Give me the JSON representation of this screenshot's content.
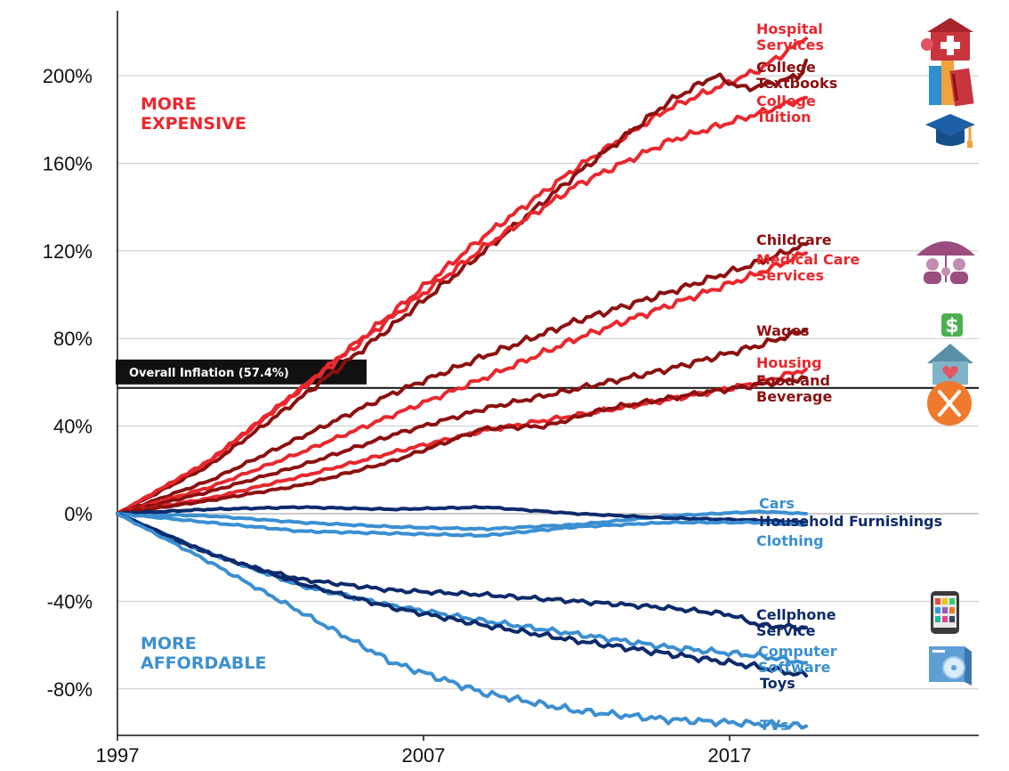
{
  "chart_data": {
    "type": "line",
    "x_ticks": [
      "1997",
      "2007",
      "2017"
    ],
    "y_ticks": [
      "200%",
      "160%",
      "120%",
      "80%",
      "40%",
      "0%",
      "-40%",
      "-80%"
    ],
    "y_tick_values": [
      200,
      160,
      120,
      80,
      40,
      0,
      -40,
      -80
    ],
    "xlim": [
      1997,
      2021.5
    ],
    "ylim": [
      -100,
      215
    ],
    "grid": true,
    "annotations": {
      "more_expensive": [
        "MORE",
        "EXPENSIVE"
      ],
      "more_affordable": [
        "MORE",
        "AFFORDABLE"
      ],
      "overall_inflation": {
        "label": "Overall Inflation (57.4%)",
        "value": 57.4
      }
    },
    "series": [
      {
        "name": "Hospital Services",
        "label_lines": [
          "Hospital",
          "Services"
        ],
        "color": "#e8282e",
        "icon": "hospital-icon",
        "points": [
          [
            1997,
            0
          ],
          [
            2000,
            24
          ],
          [
            2003,
            57
          ],
          [
            2006,
            92
          ],
          [
            2009,
            127
          ],
          [
            2012,
            158
          ],
          [
            2015,
            185
          ],
          [
            2018,
            203
          ],
          [
            2019.5,
            217
          ]
        ]
      },
      {
        "name": "College Textbooks",
        "label_lines": [
          "College",
          "Textbooks"
        ],
        "color": "#8c1010",
        "icon": "textbooks-icon",
        "points": [
          [
            1997,
            0
          ],
          [
            2000,
            22
          ],
          [
            2003,
            53
          ],
          [
            2006,
            86
          ],
          [
            2009,
            120
          ],
          [
            2012,
            155
          ],
          [
            2015,
            188
          ],
          [
            2016.5,
            200
          ],
          [
            2017.5,
            194
          ],
          [
            2018.5,
            197
          ],
          [
            2019.3,
            200
          ],
          [
            2019.5,
            207
          ]
        ]
      },
      {
        "name": "College Tuition",
        "label_lines": [
          "College",
          "Tuition"
        ],
        "color": "#e8282e",
        "icon": "graduation-cap-icon",
        "points": [
          [
            1997,
            0
          ],
          [
            2000,
            24
          ],
          [
            2003,
            57
          ],
          [
            2006,
            90
          ],
          [
            2009,
            122
          ],
          [
            2012,
            150
          ],
          [
            2015,
            170
          ],
          [
            2018,
            183
          ],
          [
            2019.5,
            190
          ]
        ]
      },
      {
        "name": "Childcare",
        "label_lines": [
          "Childcare"
        ],
        "color": "#8c1010",
        "icon": "family-umbrella-icon",
        "points": [
          [
            1997,
            0
          ],
          [
            2000,
            15
          ],
          [
            2003,
            35
          ],
          [
            2006,
            55
          ],
          [
            2009,
            72
          ],
          [
            2012,
            88
          ],
          [
            2015,
            101
          ],
          [
            2018,
            115
          ],
          [
            2019.5,
            123
          ]
        ]
      },
      {
        "name": "Medical Care Services",
        "label_lines": [
          "Medical Care",
          "Services"
        ],
        "color": "#e8282e",
        "icon": "",
        "points": [
          [
            1997,
            0
          ],
          [
            2000,
            12
          ],
          [
            2003,
            28
          ],
          [
            2006,
            45
          ],
          [
            2009,
            62
          ],
          [
            2012,
            80
          ],
          [
            2015,
            95
          ],
          [
            2018,
            110
          ],
          [
            2019.5,
            119
          ]
        ]
      },
      {
        "name": "Wages",
        "label_lines": [
          "Wages"
        ],
        "color": "#8c1010",
        "icon": "dollar-icon",
        "points": [
          [
            1997,
            0
          ],
          [
            2000,
            10
          ],
          [
            2003,
            22
          ],
          [
            2006,
            36
          ],
          [
            2009,
            48
          ],
          [
            2012,
            57
          ],
          [
            2015,
            66
          ],
          [
            2018,
            77
          ],
          [
            2019.5,
            84
          ]
        ]
      },
      {
        "name": "Housing",
        "label_lines": [
          "Housing"
        ],
        "color": "#e8282e",
        "icon": "house-icon",
        "points": [
          [
            1997,
            0
          ],
          [
            2000,
            7
          ],
          [
            2003,
            17
          ],
          [
            2006,
            28
          ],
          [
            2009,
            38
          ],
          [
            2012,
            45
          ],
          [
            2015,
            52
          ],
          [
            2018,
            60
          ],
          [
            2019.5,
            66
          ]
        ]
      },
      {
        "name": "Food and Beverage",
        "label_lines": [
          "Food and",
          "Beverage"
        ],
        "color": "#8c1010",
        "icon": "food-icon",
        "points": [
          [
            1997,
            0
          ],
          [
            2000,
            6
          ],
          [
            2003,
            13
          ],
          [
            2006,
            24
          ],
          [
            2009,
            39
          ],
          [
            2011,
            40
          ],
          [
            2013,
            48
          ],
          [
            2016,
            55
          ],
          [
            2019.5,
            62
          ]
        ]
      },
      {
        "name": "Cars",
        "label_lines": [
          "Cars"
        ],
        "color": "#3b8fd1",
        "icon": "",
        "points": [
          [
            1997,
            0
          ],
          [
            2000,
            -1
          ],
          [
            2003,
            -4
          ],
          [
            2006,
            -6
          ],
          [
            2009,
            -7
          ],
          [
            2012,
            -5
          ],
          [
            2015,
            -1
          ],
          [
            2018,
            1
          ],
          [
            2019.5,
            0
          ]
        ]
      },
      {
        "name": "Household Furnishings",
        "label_lines": [
          "Household Furnishings"
        ],
        "color": "#0d2a6b",
        "icon": "",
        "points": [
          [
            1997,
            0
          ],
          [
            2000,
            2
          ],
          [
            2003,
            3
          ],
          [
            2006,
            2
          ],
          [
            2009,
            3
          ],
          [
            2012,
            0
          ],
          [
            2015,
            -2
          ],
          [
            2018,
            -3
          ],
          [
            2019.5,
            -4
          ]
        ]
      },
      {
        "name": "Clothing",
        "label_lines": [
          "Clothing"
        ],
        "color": "#3b8fd1",
        "icon": "",
        "points": [
          [
            1997,
            0
          ],
          [
            2000,
            -4
          ],
          [
            2003,
            -8
          ],
          [
            2006,
            -9
          ],
          [
            2009,
            -10
          ],
          [
            2012,
            -6
          ],
          [
            2015,
            -4
          ],
          [
            2018,
            -4
          ],
          [
            2019.5,
            -5
          ]
        ]
      },
      {
        "name": "Cellphone Service",
        "label_lines": [
          "Cellphone",
          "Service"
        ],
        "color": "#0d2a6b",
        "icon": "cellphone-icon",
        "points": [
          [
            1997,
            0
          ],
          [
            1999,
            -13
          ],
          [
            2001,
            -23
          ],
          [
            2003,
            -30
          ],
          [
            2006,
            -35
          ],
          [
            2009,
            -37
          ],
          [
            2012,
            -40
          ],
          [
            2015,
            -43
          ],
          [
            2017,
            -46
          ],
          [
            2018,
            -51
          ],
          [
            2019.5,
            -52
          ]
        ]
      },
      {
        "name": "Computer Software",
        "label_lines": [
          "Computer",
          "Software"
        ],
        "color": "#3b8fd1",
        "icon": "software-icon",
        "points": [
          [
            1997,
            0
          ],
          [
            2000,
            -18
          ],
          [
            2003,
            -33
          ],
          [
            2006,
            -42
          ],
          [
            2009,
            -49
          ],
          [
            2012,
            -55
          ],
          [
            2015,
            -61
          ],
          [
            2018,
            -65
          ],
          [
            2019.5,
            -68
          ]
        ]
      },
      {
        "name": "Toys",
        "label_lines": [
          "Toys"
        ],
        "color": "#0d2a6b",
        "icon": "",
        "points": [
          [
            1997,
            0
          ],
          [
            2000,
            -18
          ],
          [
            2003,
            -32
          ],
          [
            2006,
            -43
          ],
          [
            2009,
            -51
          ],
          [
            2012,
            -58
          ],
          [
            2015,
            -64
          ],
          [
            2018,
            -70
          ],
          [
            2019.5,
            -74
          ]
        ]
      },
      {
        "name": "TVs",
        "label_lines": [
          "TVs"
        ],
        "color": "#3b8fd1",
        "icon": "",
        "points": [
          [
            1997,
            0
          ],
          [
            2000,
            -22
          ],
          [
            2003,
            -45
          ],
          [
            2006,
            -68
          ],
          [
            2009,
            -82
          ],
          [
            2012,
            -90
          ],
          [
            2015,
            -94
          ],
          [
            2018,
            -96
          ],
          [
            2019.5,
            -97
          ]
        ]
      }
    ]
  }
}
